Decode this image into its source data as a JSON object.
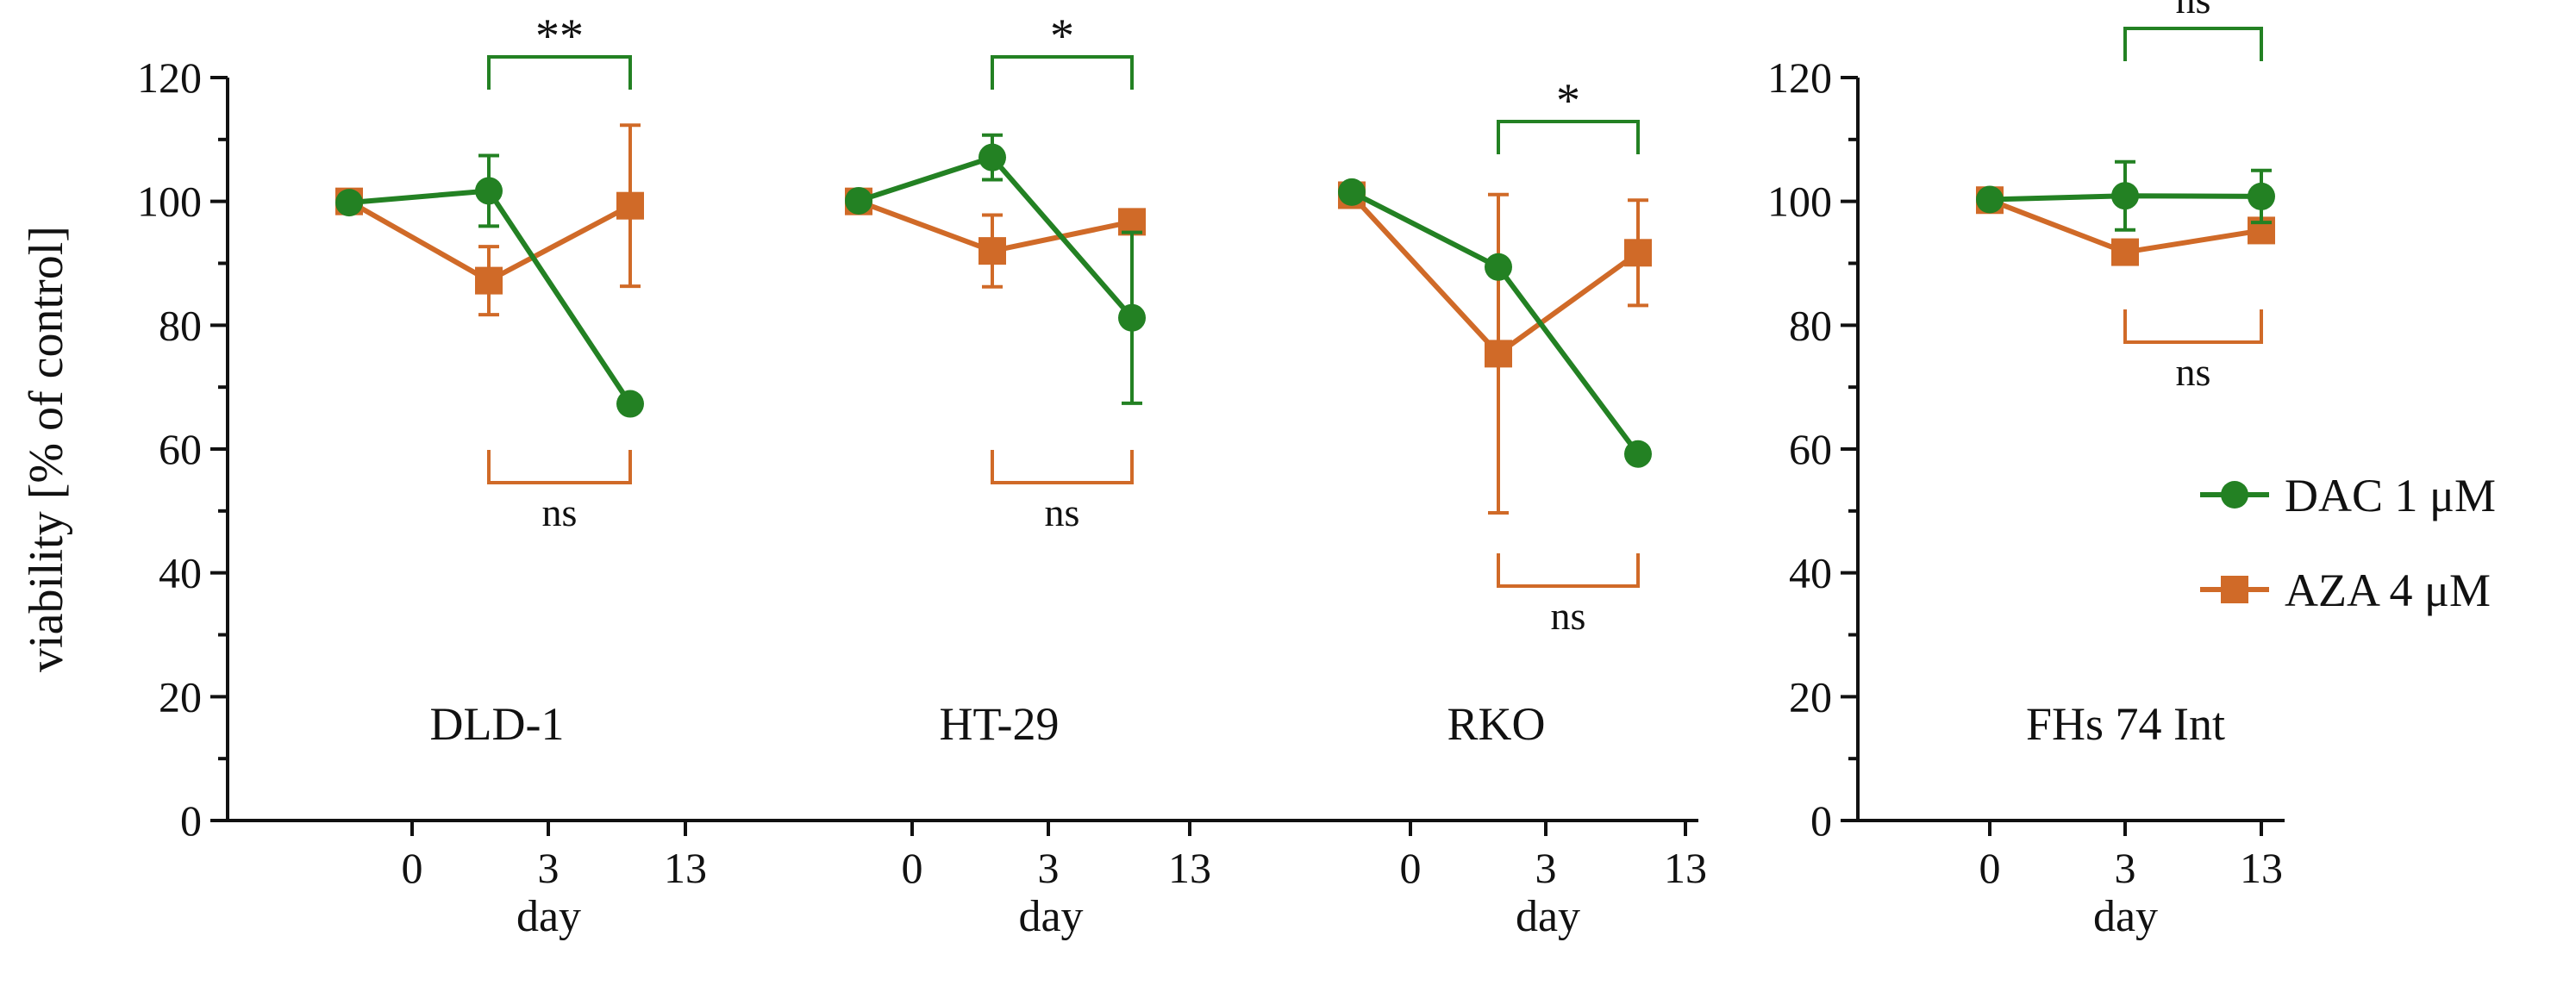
{
  "colors": {
    "dac": "#238123",
    "aza": "#D06A28",
    "axis": "#111111"
  },
  "chart_data": {
    "type": "line",
    "ylabel": "viability [% of control]",
    "xlabel": "day",
    "ylim": [
      0,
      120
    ],
    "yticks": [
      0,
      20,
      40,
      60,
      80,
      100,
      120
    ],
    "xticks": [
      "0",
      "3",
      "13"
    ],
    "legend": {
      "position": "right",
      "entries": [
        {
          "key": "dac",
          "label": "DAC  1 μM",
          "marker": "circle"
        },
        {
          "key": "aza",
          "label": "AZA  4 μM",
          "marker": "square"
        }
      ]
    },
    "panels": [
      {
        "name": "DLD-1",
        "series": [
          {
            "key": "dac",
            "values": [
              99.8,
              101.7,
              67.3
            ],
            "err": [
              [
                0,
                0
              ],
              [
                5.7,
                5.7
              ],
              [
                0,
                0
              ]
            ]
          },
          {
            "key": "aza",
            "values": [
              100.0,
              87.2,
              99.3
            ],
            "err": [
              [
                1.5,
                1.5
              ],
              [
                5.5,
                5.5
              ],
              [
                13.0,
                13.0
              ]
            ]
          }
        ],
        "sig_dac": "**",
        "sig_aza": "ns"
      },
      {
        "name": "HT-29",
        "series": [
          {
            "key": "dac",
            "values": [
              100.1,
              107.1,
              81.2
            ],
            "err": [
              [
                0,
                0
              ],
              [
                3.6,
                3.6
              ],
              [
                13.8,
                13.8
              ]
            ]
          },
          {
            "key": "aza",
            "values": [
              100.0,
              92.0,
              96.7
            ],
            "err": [
              [
                1.5,
                1.5
              ],
              [
                5.8,
                5.8
              ],
              [
                0,
                0
              ]
            ]
          }
        ],
        "sig_dac": "*",
        "sig_aza": "ns"
      },
      {
        "name": "RKO",
        "series": [
          {
            "key": "dac",
            "values": [
              101.5,
              89.4,
              59.2
            ],
            "err": [
              [
                0,
                0
              ],
              [
                0,
                0
              ],
              [
                0,
                0
              ]
            ]
          },
          {
            "key": "aza",
            "values": [
              101.0,
              75.4,
              91.7
            ],
            "err": [
              [
                1.5,
                1.5
              ],
              [
                25.7,
                25.7
              ],
              [
                8.5,
                8.5
              ]
            ]
          }
        ],
        "sig_dac": "*",
        "sig_aza": "ns"
      },
      {
        "name": "FHs 74 Int",
        "series": [
          {
            "key": "dac",
            "values": [
              100.3,
              100.9,
              100.8
            ],
            "err": [
              [
                0,
                0
              ],
              [
                5.5,
                5.5
              ],
              [
                4.2,
                4.2
              ]
            ]
          },
          {
            "key": "aza",
            "values": [
              100.2,
              91.8,
              95.3
            ],
            "err": [
              [
                1.5,
                1.5
              ],
              [
                0,
                0
              ],
              [
                0,
                0
              ]
            ]
          }
        ],
        "sig_dac": "ns",
        "sig_aza": "ns"
      }
    ]
  }
}
